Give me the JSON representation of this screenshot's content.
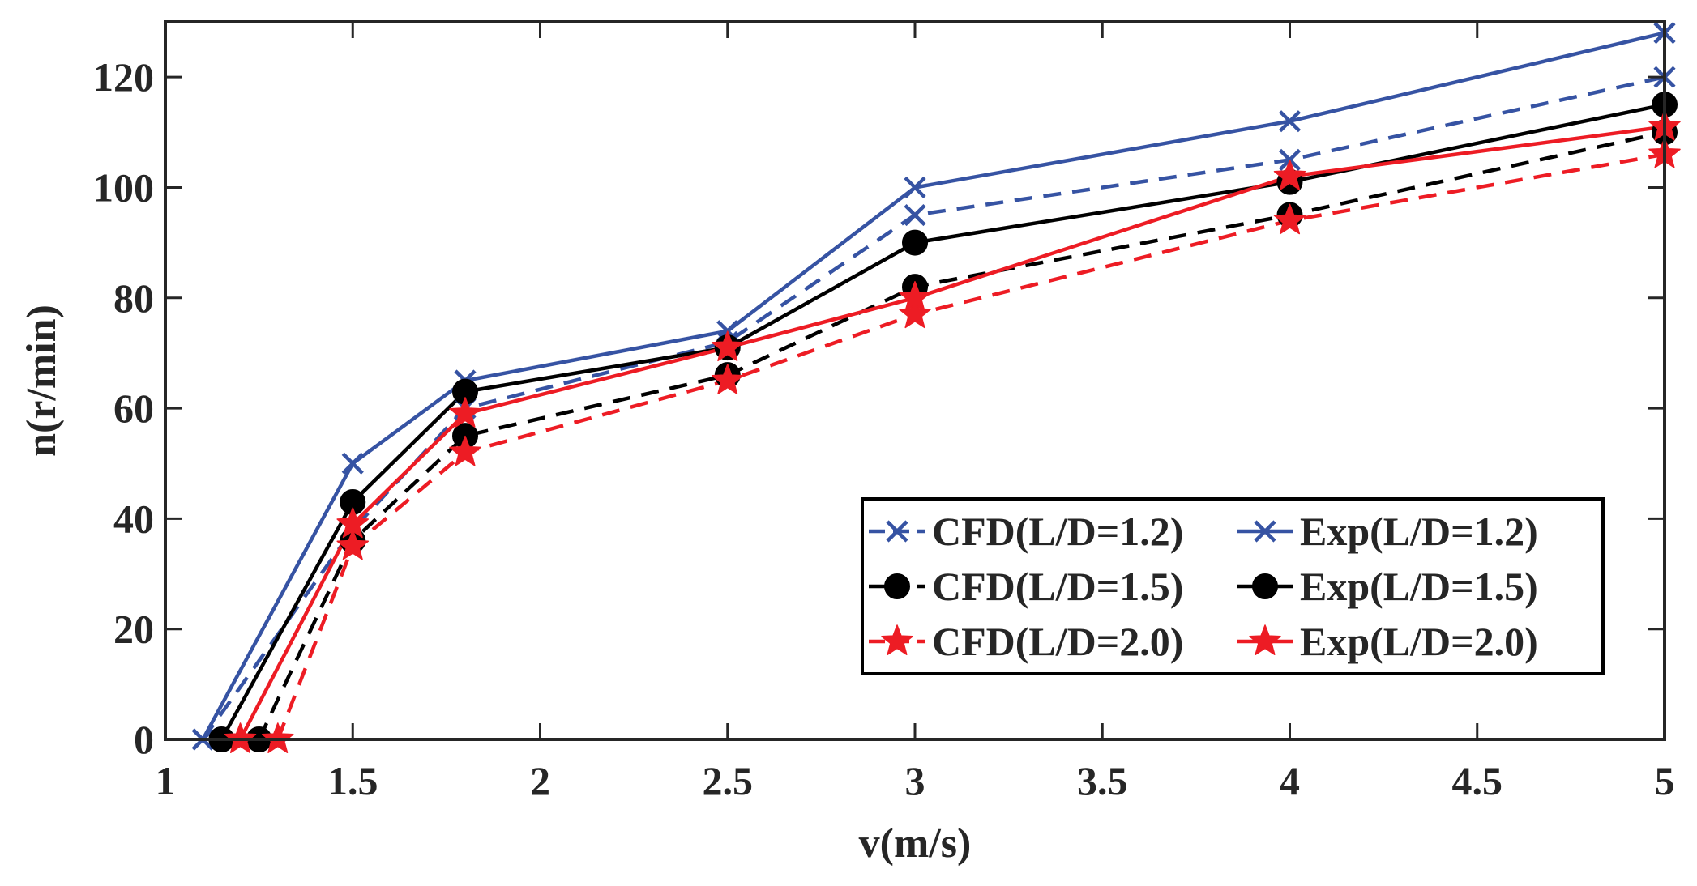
{
  "chart_data": {
    "type": "line",
    "title": "",
    "xlabel": "v(m/s)",
    "ylabel": "n(r/min)",
    "xlim": [
      1,
      5
    ],
    "ylim": [
      0,
      130
    ],
    "xticks": [
      1,
      1.5,
      2,
      2.5,
      3,
      3.5,
      4,
      4.5,
      5
    ],
    "xtick_labels": [
      "1",
      "1.5",
      "2",
      "2.5",
      "3",
      "3.5",
      "4",
      "4.5",
      "5"
    ],
    "yticks": [
      0,
      20,
      40,
      60,
      80,
      100,
      120
    ],
    "ytick_labels": [
      "0",
      "20",
      "40",
      "60",
      "80",
      "100",
      "120"
    ],
    "grid": false,
    "legend_position": "lower-right",
    "series": [
      {
        "name": "CFD(L/D=1.2)",
        "color": "#3653a3",
        "dash": true,
        "marker": "x",
        "x": [
          1.1,
          1.5,
          1.8,
          2.5,
          3,
          4,
          5
        ],
        "y": [
          0,
          38,
          60,
          72,
          95,
          105,
          120
        ]
      },
      {
        "name": "CFD(L/D=1.5)",
        "color": "#000000",
        "dash": true,
        "marker": "circle",
        "x": [
          1.25,
          1.5,
          1.8,
          2.5,
          3,
          4,
          5
        ],
        "y": [
          0,
          36,
          55,
          66,
          82,
          95,
          110
        ]
      },
      {
        "name": "CFD(L/D=2.0)",
        "color": "#ed1c24",
        "dash": true,
        "marker": "star",
        "x": [
          1.3,
          1.5,
          1.8,
          2.5,
          3,
          4,
          5
        ],
        "y": [
          0,
          35,
          52,
          65,
          77,
          94,
          106
        ]
      },
      {
        "name": "Exp(L/D=1.2)",
        "color": "#3653a3",
        "dash": false,
        "marker": "x",
        "x": [
          1.1,
          1.5,
          1.8,
          2.5,
          3,
          4,
          5
        ],
        "y": [
          0,
          50,
          65,
          74,
          100,
          112,
          128
        ]
      },
      {
        "name": "Exp(L/D=1.5)",
        "color": "#000000",
        "dash": false,
        "marker": "circle",
        "x": [
          1.15,
          1.5,
          1.8,
          2.5,
          3,
          4,
          5
        ],
        "y": [
          0,
          43,
          63,
          71,
          90,
          101,
          115
        ]
      },
      {
        "name": "Exp(L/D=2.0)",
        "color": "#ed1c24",
        "dash": false,
        "marker": "star",
        "x": [
          1.2,
          1.5,
          1.8,
          2.5,
          3,
          4,
          5
        ],
        "y": [
          0,
          39,
          59,
          71,
          80,
          102,
          111
        ]
      }
    ]
  }
}
